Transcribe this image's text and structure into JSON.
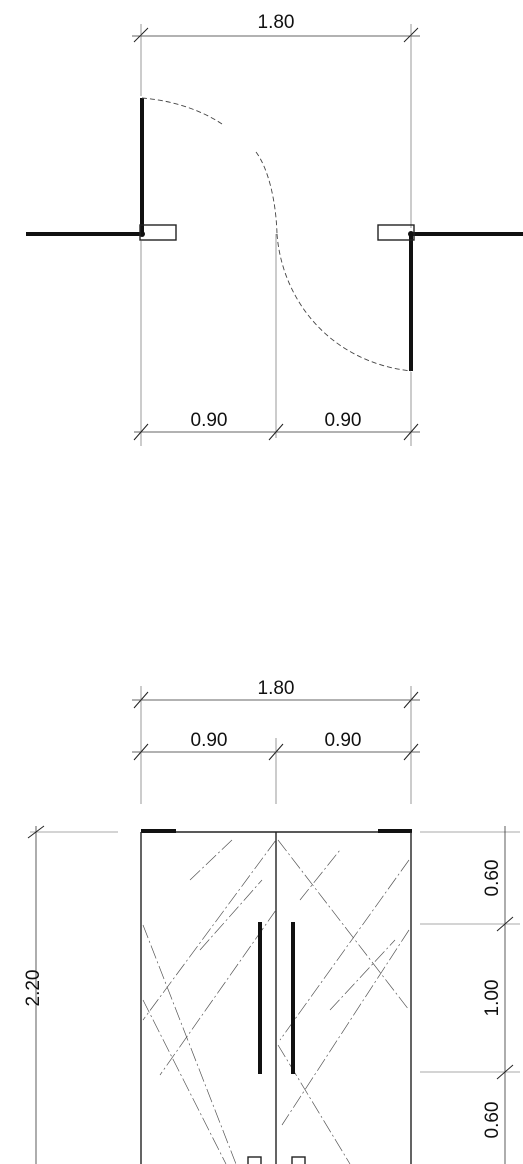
{
  "plan_view": {
    "total_width": "1.80",
    "left_leaf_width": "0.90",
    "right_leaf_width": "0.90"
  },
  "elevation_view": {
    "total_width": "1.80",
    "left_leaf_width": "0.90",
    "right_leaf_width": "0.90",
    "total_height": "2.20",
    "top_segment": "0.60",
    "middle_segment": "1.00",
    "bottom_segment": "0.60"
  }
}
